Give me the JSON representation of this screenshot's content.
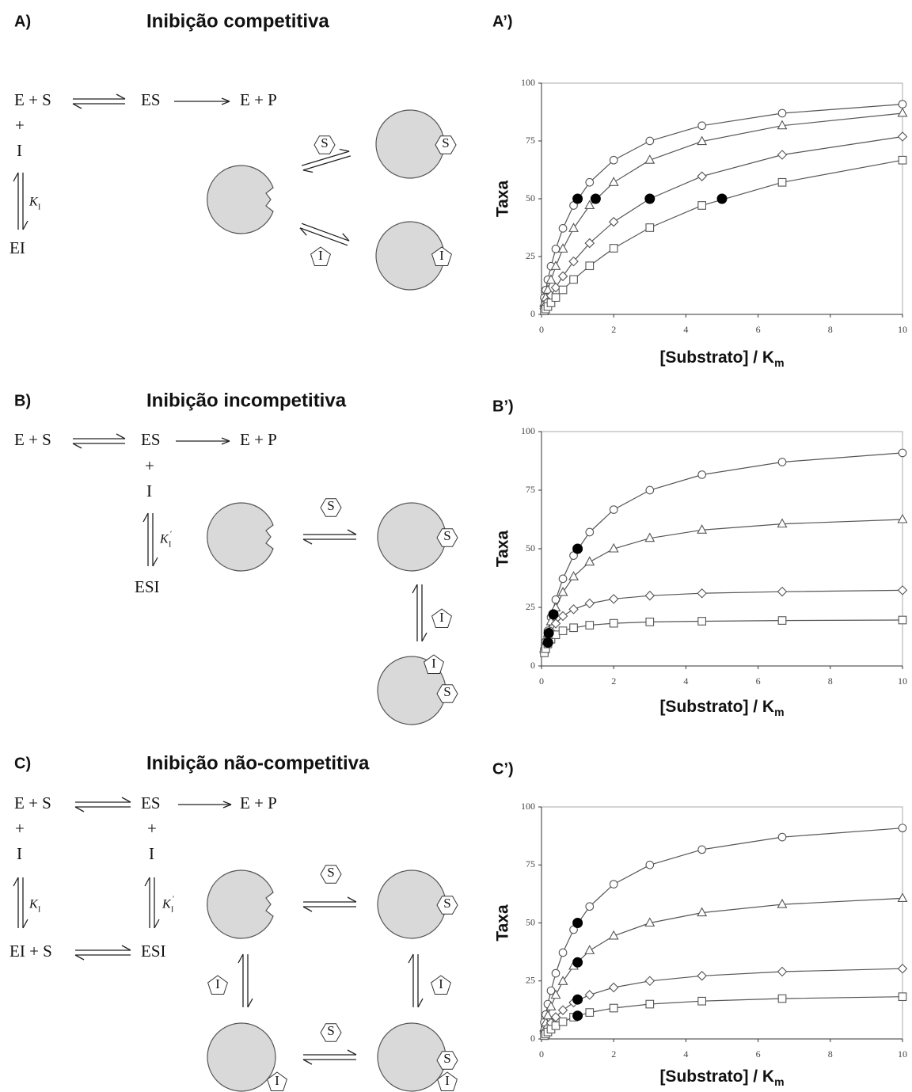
{
  "panels": [
    {
      "label": "A)",
      "title": "Inibição competitiva",
      "scheme": [
        "E + S",
        "ES",
        "E + P",
        "+",
        "I",
        "K",
        "I",
        "EI"
      ],
      "ligands": [
        "S",
        "S",
        "I",
        "I"
      ]
    },
    {
      "label": "B)",
      "title": "Inibição incompetitiva",
      "scheme": [
        "E + S",
        "ES",
        "E + P",
        "+",
        "I",
        "K",
        "I",
        "′",
        "ESI"
      ],
      "ligands": [
        "S",
        "S",
        "I",
        "I",
        "S"
      ]
    },
    {
      "label": "C)",
      "title": "Inibição não-competitiva",
      "scheme": [
        "E + S",
        "ES",
        "E + P",
        "+",
        "I",
        "+",
        "I",
        "K",
        "I",
        "K",
        "I",
        "′",
        "EI + S",
        "ESI"
      ],
      "ligands": [
        "S",
        "S",
        "I",
        "I",
        "S",
        "I",
        "S",
        "I"
      ]
    }
  ],
  "chart_data": [
    {
      "type": "line",
      "label": "A’)",
      "x_label": "[Substrato] / K",
      "x_label_subscript": "m",
      "y_label": "Taxa",
      "x": [
        0.078,
        0.117,
        0.176,
        0.263,
        0.395,
        0.593,
        0.889,
        1.333,
        2,
        3,
        4.444,
        6.667,
        10
      ],
      "xlim": [
        0,
        10
      ],
      "xticks": [
        0,
        2,
        4,
        6,
        8,
        10
      ],
      "ylim": [
        0,
        100
      ],
      "yticks": [
        0,
        25,
        50,
        75,
        100
      ],
      "series": [
        {
          "marker": "circle",
          "color": "#555555",
          "values": [
            7.2,
            10.5,
            15.0,
            20.8,
            28.3,
            37.2,
            47.1,
            57.1,
            66.7,
            75.0,
            81.6,
            87.0,
            90.9
          ]
        },
        {
          "marker": "triangle",
          "color": "#555555",
          "values": [
            4.9,
            7.2,
            10.5,
            14.9,
            20.8,
            28.3,
            37.2,
            47.1,
            57.1,
            66.7,
            74.8,
            81.6,
            87.0
          ]
        },
        {
          "marker": "diamond",
          "color": "#555555",
          "values": [
            2.5,
            3.8,
            5.5,
            8.1,
            11.6,
            16.5,
            22.9,
            30.8,
            40.0,
            50.0,
            59.7,
            69.0,
            76.9
          ]
        },
        {
          "marker": "square",
          "color": "#555555",
          "values": [
            1.5,
            2.3,
            3.4,
            5.0,
            7.3,
            10.6,
            15.1,
            21.0,
            28.6,
            37.5,
            47.1,
            57.1,
            66.7
          ]
        }
      ],
      "points": {
        "marker": "filled-circle",
        "color": "#000000",
        "x": [
          1,
          1.5,
          3,
          5
        ],
        "values": [
          50,
          50,
          50,
          50
        ]
      }
    },
    {
      "type": "line",
      "label": "B’)",
      "x_label": "[Substrato] / K",
      "x_label_subscript": "m",
      "y_label": "Taxa",
      "x": [
        0.078,
        0.117,
        0.176,
        0.263,
        0.395,
        0.593,
        0.889,
        1.333,
        2,
        3,
        4.444,
        6.667,
        10
      ],
      "xlim": [
        0,
        10
      ],
      "xticks": [
        0,
        2,
        4,
        6,
        8,
        10
      ],
      "ylim": [
        0,
        100
      ],
      "yticks": [
        0,
        25,
        50,
        75,
        100
      ],
      "series": [
        {
          "marker": "circle",
          "color": "#555555",
          "values": [
            7.2,
            10.5,
            15.0,
            20.8,
            28.3,
            37.2,
            47.1,
            57.1,
            66.7,
            75.0,
            81.6,
            87.0,
            90.9
          ]
        },
        {
          "marker": "triangle",
          "color": "#555555",
          "values": [
            7.0,
            10.0,
            13.9,
            18.9,
            24.8,
            31.4,
            38.1,
            44.4,
            50.0,
            54.5,
            58.0,
            60.6,
            62.5
          ]
        },
        {
          "marker": "diamond",
          "color": "#555555",
          "values": [
            6.3,
            8.7,
            11.5,
            14.7,
            18.1,
            21.3,
            24.2,
            26.7,
            28.6,
            30.0,
            31.0,
            31.7,
            32.3
          ]
        },
        {
          "marker": "square",
          "color": "#555555",
          "values": [
            5.6,
            7.4,
            9.4,
            11.4,
            13.3,
            15.0,
            16.3,
            17.4,
            18.2,
            18.8,
            19.1,
            19.4,
            19.6
          ]
        }
      ],
      "points": {
        "marker": "filled-circle",
        "color": "#000000",
        "x": [
          1,
          0.33,
          0.2,
          0.18
        ],
        "values": [
          50,
          22,
          14,
          10
        ]
      }
    },
    {
      "type": "line",
      "label": "C’)",
      "x_label": "[Substrato] / K",
      "x_label_subscript": "m",
      "y_label": "Taxa",
      "x": [
        0.078,
        0.117,
        0.176,
        0.263,
        0.395,
        0.593,
        0.889,
        1.333,
        2,
        3,
        4.444,
        6.667,
        10
      ],
      "xlim": [
        0,
        10
      ],
      "xticks": [
        0,
        2,
        4,
        6,
        8,
        10
      ],
      "ylim": [
        0,
        100
      ],
      "yticks": [
        0,
        25,
        50,
        75,
        100
      ],
      "series": [
        {
          "marker": "circle",
          "color": "#555555",
          "values": [
            7.2,
            10.5,
            15.0,
            20.8,
            28.3,
            37.2,
            47.1,
            57.1,
            66.7,
            75.0,
            81.6,
            87.0,
            90.9
          ]
        },
        {
          "marker": "triangle",
          "color": "#555555",
          "values": [
            4.8,
            7.0,
            10.0,
            13.9,
            18.9,
            24.8,
            31.4,
            38.1,
            44.4,
            50.0,
            54.4,
            58.0,
            60.6
          ]
        },
        {
          "marker": "diamond",
          "color": "#555555",
          "values": [
            2.4,
            3.5,
            5.0,
            6.9,
            9.4,
            12.4,
            15.7,
            19.0,
            22.2,
            25.0,
            27.2,
            29.0,
            30.3
          ]
        },
        {
          "marker": "square",
          "color": "#555555",
          "values": [
            1.4,
            2.1,
            3.0,
            4.2,
            5.7,
            7.4,
            9.4,
            11.4,
            13.3,
            15.0,
            16.3,
            17.4,
            18.2
          ]
        }
      ],
      "points": {
        "marker": "filled-circle",
        "color": "#000000",
        "x": [
          1,
          1,
          1,
          1
        ],
        "values": [
          50,
          33,
          17,
          10
        ]
      }
    }
  ]
}
